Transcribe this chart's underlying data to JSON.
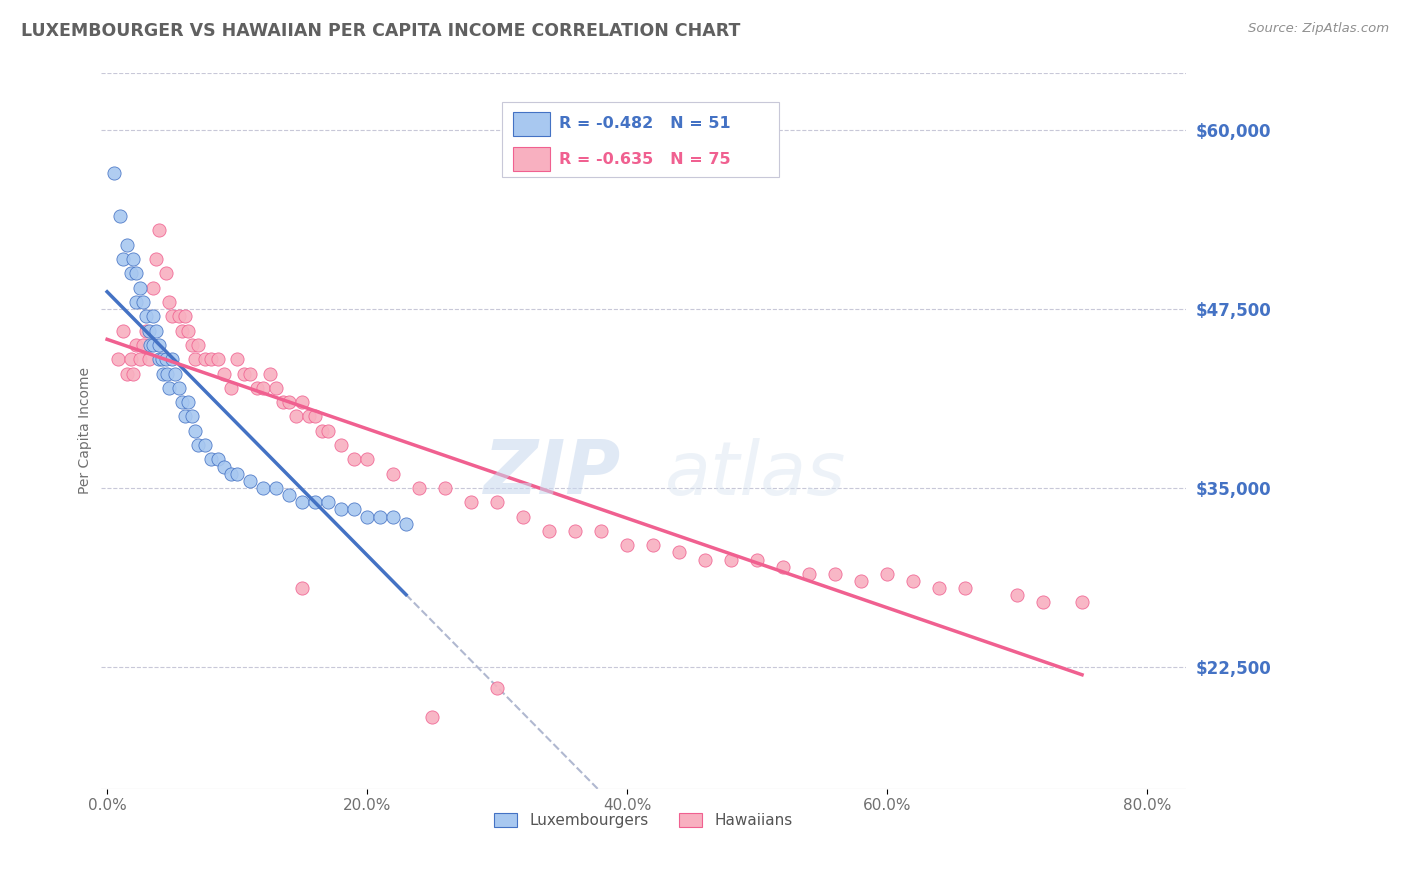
{
  "title": "LUXEMBOURGER VS HAWAIIAN PER CAPITA INCOME CORRELATION CHART",
  "source_text": "Source: ZipAtlas.com",
  "ylabel": "Per Capita Income",
  "xlabel_ticks": [
    "0.0%",
    "20.0%",
    "40.0%",
    "60.0%",
    "80.0%"
  ],
  "xlabel_values": [
    0.0,
    0.2,
    0.4,
    0.6,
    0.8
  ],
  "ytick_labels": [
    "$22,500",
    "$35,000",
    "$47,500",
    "$60,000"
  ],
  "ytick_values": [
    22500,
    35000,
    47500,
    60000
  ],
  "xlim": [
    -0.005,
    0.83
  ],
  "ylim": [
    14000,
    64000
  ],
  "watermark_zip": "ZIP",
  "watermark_atlas": "atlas",
  "legend_lux": "Luxembourgers",
  "legend_haw": "Hawaiians",
  "lux_R": "R = -0.482",
  "lux_N": "N = 51",
  "haw_R": "R = -0.635",
  "haw_N": "N = 75",
  "lux_color": "#A8C8F0",
  "haw_color": "#F8B0C0",
  "lux_line_color": "#4472C4",
  "haw_line_color": "#F06090",
  "dash_line_color": "#B0B8D0",
  "axis_label_color": "#4472C4",
  "grid_color": "#C8C8D8",
  "title_color": "#606060",
  "lux_x": [
    0.005,
    0.01,
    0.012,
    0.015,
    0.018,
    0.02,
    0.022,
    0.022,
    0.025,
    0.028,
    0.03,
    0.032,
    0.033,
    0.035,
    0.035,
    0.038,
    0.04,
    0.04,
    0.042,
    0.043,
    0.045,
    0.046,
    0.048,
    0.05,
    0.052,
    0.055,
    0.058,
    0.06,
    0.062,
    0.065,
    0.068,
    0.07,
    0.075,
    0.08,
    0.085,
    0.09,
    0.095,
    0.1,
    0.11,
    0.12,
    0.13,
    0.14,
    0.15,
    0.16,
    0.17,
    0.18,
    0.19,
    0.2,
    0.21,
    0.22,
    0.23
  ],
  "lux_y": [
    57000,
    54000,
    51000,
    52000,
    50000,
    51000,
    50000,
    48000,
    49000,
    48000,
    47000,
    46000,
    45000,
    47000,
    45000,
    46000,
    45000,
    44000,
    44000,
    43000,
    44000,
    43000,
    42000,
    44000,
    43000,
    42000,
    41000,
    40000,
    41000,
    40000,
    39000,
    38000,
    38000,
    37000,
    37000,
    36500,
    36000,
    36000,
    35500,
    35000,
    35000,
    34500,
    34000,
    34000,
    34000,
    33500,
    33500,
    33000,
    33000,
    33000,
    32500
  ],
  "haw_x": [
    0.008,
    0.012,
    0.015,
    0.018,
    0.02,
    0.022,
    0.025,
    0.028,
    0.03,
    0.032,
    0.035,
    0.038,
    0.04,
    0.045,
    0.048,
    0.05,
    0.055,
    0.058,
    0.06,
    0.062,
    0.065,
    0.068,
    0.07,
    0.075,
    0.08,
    0.085,
    0.09,
    0.095,
    0.1,
    0.105,
    0.11,
    0.115,
    0.12,
    0.125,
    0.13,
    0.135,
    0.14,
    0.145,
    0.15,
    0.155,
    0.16,
    0.165,
    0.17,
    0.18,
    0.19,
    0.2,
    0.22,
    0.24,
    0.26,
    0.28,
    0.3,
    0.32,
    0.34,
    0.36,
    0.38,
    0.4,
    0.42,
    0.44,
    0.46,
    0.48,
    0.5,
    0.52,
    0.54,
    0.56,
    0.58,
    0.6,
    0.62,
    0.64,
    0.66,
    0.7,
    0.72,
    0.75,
    0.15,
    0.25,
    0.3
  ],
  "haw_y": [
    44000,
    46000,
    43000,
    44000,
    43000,
    45000,
    44000,
    45000,
    46000,
    44000,
    49000,
    51000,
    53000,
    50000,
    48000,
    47000,
    47000,
    46000,
    47000,
    46000,
    45000,
    44000,
    45000,
    44000,
    44000,
    44000,
    43000,
    42000,
    44000,
    43000,
    43000,
    42000,
    42000,
    43000,
    42000,
    41000,
    41000,
    40000,
    41000,
    40000,
    40000,
    39000,
    39000,
    38000,
    37000,
    37000,
    36000,
    35000,
    35000,
    34000,
    34000,
    33000,
    32000,
    32000,
    32000,
    31000,
    31000,
    30500,
    30000,
    30000,
    30000,
    29500,
    29000,
    29000,
    28500,
    29000,
    28500,
    28000,
    28000,
    27500,
    27000,
    27000,
    28000,
    19000,
    21000
  ]
}
